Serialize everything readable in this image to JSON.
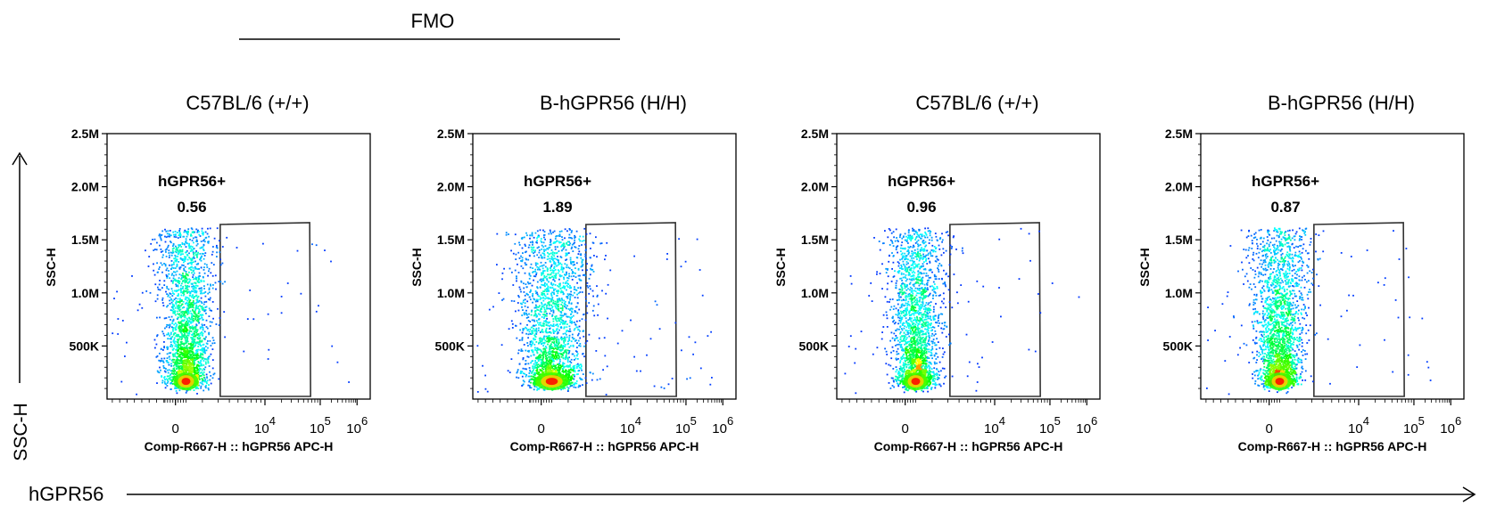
{
  "figure": {
    "group_label": "FMO",
    "y_arrow_label": "SSC-H",
    "x_arrow_label": "hGPR56"
  },
  "chart_data": [
    {
      "type": "scatter",
      "title": "C57BL/6 (+/+)",
      "xlabel": "Comp-R667-H :: hGPR56 APC-H",
      "ylabel": "SSC-H",
      "x_ticks": [
        "0",
        "10^4",
        "10^5",
        "10^6"
      ],
      "y_ticks": [
        "500K",
        "1.0M",
        "1.5M",
        "2.0M",
        "2.5M"
      ],
      "ylim": [
        0,
        2500000
      ],
      "gate": {
        "name": "hGPR56+",
        "percent": "0.56"
      },
      "population": {
        "hot_center": [
          0,
          150000
        ],
        "max_ssc": 1600000
      },
      "colormap": [
        "#0000ff",
        "#00ffff",
        "#00ff00",
        "#ffff00",
        "#ff0000"
      ]
    },
    {
      "type": "scatter",
      "title": "B-hGPR56 (H/H)",
      "xlabel": "Comp-R667-H :: hGPR56 APC-H",
      "ylabel": "SSC-H",
      "x_ticks": [
        "0",
        "10^4",
        "10^5",
        "10^6"
      ],
      "y_ticks": [
        "500K",
        "1.0M",
        "1.5M",
        "2.0M",
        "2.5M"
      ],
      "ylim": [
        0,
        2500000
      ],
      "gate": {
        "name": "hGPR56+",
        "percent": "1.89"
      },
      "population": {
        "hot_center": [
          0,
          150000
        ],
        "max_ssc": 1600000
      },
      "colormap": [
        "#0000ff",
        "#00ffff",
        "#00ff00",
        "#ffff00",
        "#ff0000"
      ]
    },
    {
      "type": "scatter",
      "title": "C57BL/6 (+/+)",
      "xlabel": "Comp-R667-H :: hGPR56 APC-H",
      "ylabel": "SSC-H",
      "x_ticks": [
        "0",
        "10^4",
        "10^5",
        "10^6"
      ],
      "y_ticks": [
        "500K",
        "1.0M",
        "1.5M",
        "2.0M",
        "2.5M"
      ],
      "ylim": [
        0,
        2500000
      ],
      "gate": {
        "name": "hGPR56+",
        "percent": "0.96"
      },
      "population": {
        "hot_center": [
          0,
          150000
        ],
        "max_ssc": 1600000
      },
      "colormap": [
        "#0000ff",
        "#00ffff",
        "#00ff00",
        "#ffff00",
        "#ff0000"
      ]
    },
    {
      "type": "scatter",
      "title": "B-hGPR56 (H/H)",
      "xlabel": "Comp-R667-H :: hGPR56 APC-H",
      "ylabel": "SSC-H",
      "x_ticks": [
        "0",
        "10^4",
        "10^5",
        "10^6"
      ],
      "y_ticks": [
        "500K",
        "1.0M",
        "1.5M",
        "2.0M",
        "2.5M"
      ],
      "ylim": [
        0,
        2500000
      ],
      "gate": {
        "name": "hGPR56+",
        "percent": "0.87"
      },
      "population": {
        "hot_center": [
          0,
          150000
        ],
        "max_ssc": 1600000
      },
      "colormap": [
        "#0000ff",
        "#00ffff",
        "#00ff00",
        "#ffff00",
        "#ff0000"
      ]
    }
  ]
}
